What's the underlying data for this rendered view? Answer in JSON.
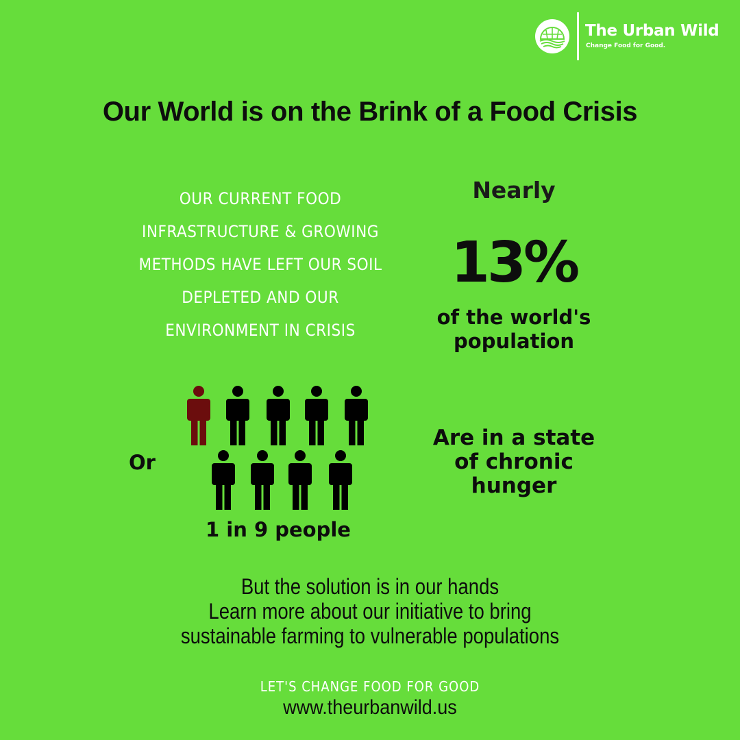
{
  "brand": {
    "name": "The Urban Wild",
    "tagline": "Change Food for Good.",
    "logo_icon": "farm-dome-logo"
  },
  "headline": "Our World is on the Brink of a Food Crisis",
  "body_left": "Our current food infrastructure & growing methods have left our soil depleted and our environment in crisis",
  "stat": {
    "nearly": "Nearly",
    "percent": "13%",
    "of_population": "of the world's population",
    "chronic": "Are in a state of chronic hunger"
  },
  "or_label": "Or",
  "people_label": "1 in 9 people",
  "people_figures": {
    "total": 9,
    "highlighted": 1,
    "highlight_color": "#6b0d0d",
    "default_color": "#000000",
    "icon": "person-icon"
  },
  "solution": [
    "But the solution is in our hands",
    "Learn more about our initiative to bring",
    "sustainable farming to vulnerable populations"
  ],
  "cta": "Let's change food for good",
  "website": "www.theurbanwild.us",
  "colors": {
    "background": "#66dd3b",
    "text_dark": "#0d0d0d",
    "text_light": "#ffffff"
  }
}
